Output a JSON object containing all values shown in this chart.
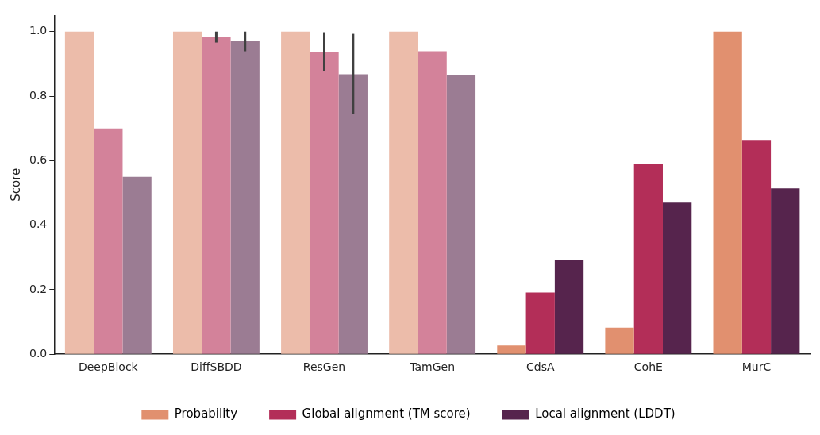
{
  "chart_data": {
    "type": "bar",
    "ylabel": "Score",
    "categories": [
      "DeepBlock",
      "DiffSBDD",
      "ResGen",
      "TamGen",
      "CdsA",
      "CohE",
      "MurC"
    ],
    "series": [
      {
        "name": "Probability",
        "color": "#e1906f",
        "colors": [
          "#ecbcaa",
          "#ecbcaa",
          "#ecbcaa",
          "#ecbcaa",
          "#e1906f",
          "#e1906f",
          "#e1906f"
        ],
        "values": [
          1.0,
          1.0,
          1.0,
          1.0,
          0.027,
          0.082,
          1.0
        ],
        "errors": [
          null,
          null,
          null,
          null,
          null,
          null,
          null
        ]
      },
      {
        "name": "Global alignment (TM score)",
        "color": "#b32e58",
        "colors": [
          "#d3829a",
          "#d3829a",
          "#d3829a",
          "#d3829a",
          "#b32e58",
          "#b32e58",
          "#b32e58"
        ],
        "values": [
          0.7,
          0.984,
          0.936,
          0.939,
          0.191,
          0.589,
          0.664
        ],
        "errors": [
          null,
          [
            0.966,
            1.0
          ],
          [
            0.877,
            0.998
          ],
          null,
          null,
          null,
          null
        ]
      },
      {
        "name": "Local alignment (LDDT)",
        "color": "#56244d",
        "colors": [
          "#9b7c93",
          "#9b7c93",
          "#9b7c93",
          "#9b7c93",
          "#56244d",
          "#56244d",
          "#56244d"
        ],
        "values": [
          0.55,
          0.97,
          0.868,
          0.864,
          0.291,
          0.47,
          0.514
        ],
        "errors": [
          null,
          [
            0.939,
            1.0
          ],
          [
            0.745,
            0.993
          ],
          null,
          null,
          null,
          null
        ]
      }
    ],
    "ylim": [
      0,
      1.05
    ],
    "yticks": [
      {
        "value": 0,
        "label": "0.0"
      },
      {
        "value": 0.2,
        "label": "0.2"
      },
      {
        "value": 0.4,
        "label": "0.4"
      },
      {
        "value": 0.6,
        "label": "0.6"
      },
      {
        "value": 0.8,
        "label": "0.8"
      },
      {
        "value": 1.0,
        "label": "1.0"
      }
    ],
    "grid": false,
    "legend": "bottom"
  }
}
